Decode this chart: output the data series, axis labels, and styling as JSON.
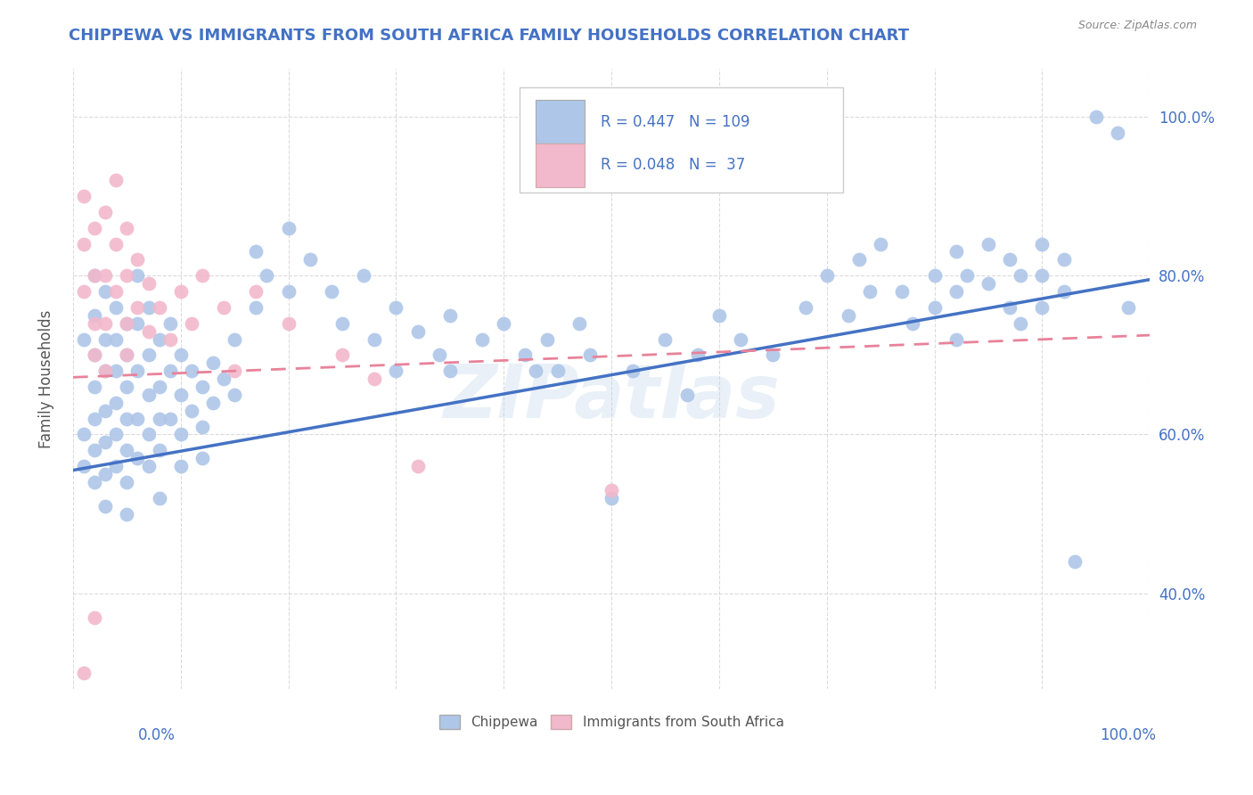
{
  "title": "CHIPPEWA VS IMMIGRANTS FROM SOUTH AFRICA FAMILY HOUSEHOLDS CORRELATION CHART",
  "source": "Source: ZipAtlas.com",
  "ylabel": "Family Households",
  "blue_color": "#aec6e8",
  "pink_color": "#f2b8cb",
  "blue_line_color": "#4472c4",
  "pink_line_color": "#e8829a",
  "title_color": "#4472c4",
  "source_color": "#888888",
  "watermark": "ZIPatlas",
  "xlim": [
    0.0,
    1.0
  ],
  "ylim": [
    0.28,
    1.06
  ],
  "yticks": [
    0.4,
    0.6,
    0.8,
    1.0
  ],
  "ytick_labels": [
    "40.0%",
    "60.0%",
    "80.0%",
    "100.0%"
  ],
  "blue_line": [
    0.0,
    0.555,
    1.0,
    0.795
  ],
  "pink_line": [
    0.0,
    0.672,
    1.0,
    0.725
  ],
  "blue_scatter": [
    [
      0.01,
      0.72
    ],
    [
      0.01,
      0.6
    ],
    [
      0.01,
      0.56
    ],
    [
      0.02,
      0.8
    ],
    [
      0.02,
      0.75
    ],
    [
      0.02,
      0.7
    ],
    [
      0.02,
      0.66
    ],
    [
      0.02,
      0.62
    ],
    [
      0.02,
      0.58
    ],
    [
      0.02,
      0.54
    ],
    [
      0.03,
      0.78
    ],
    [
      0.03,
      0.72
    ],
    [
      0.03,
      0.68
    ],
    [
      0.03,
      0.63
    ],
    [
      0.03,
      0.59
    ],
    [
      0.03,
      0.55
    ],
    [
      0.03,
      0.51
    ],
    [
      0.04,
      0.76
    ],
    [
      0.04,
      0.72
    ],
    [
      0.04,
      0.68
    ],
    [
      0.04,
      0.64
    ],
    [
      0.04,
      0.6
    ],
    [
      0.04,
      0.56
    ],
    [
      0.05,
      0.74
    ],
    [
      0.05,
      0.7
    ],
    [
      0.05,
      0.66
    ],
    [
      0.05,
      0.62
    ],
    [
      0.05,
      0.58
    ],
    [
      0.05,
      0.54
    ],
    [
      0.05,
      0.5
    ],
    [
      0.06,
      0.8
    ],
    [
      0.06,
      0.74
    ],
    [
      0.06,
      0.68
    ],
    [
      0.06,
      0.62
    ],
    [
      0.06,
      0.57
    ],
    [
      0.07,
      0.76
    ],
    [
      0.07,
      0.7
    ],
    [
      0.07,
      0.65
    ],
    [
      0.07,
      0.6
    ],
    [
      0.07,
      0.56
    ],
    [
      0.08,
      0.72
    ],
    [
      0.08,
      0.66
    ],
    [
      0.08,
      0.62
    ],
    [
      0.08,
      0.58
    ],
    [
      0.08,
      0.52
    ],
    [
      0.09,
      0.74
    ],
    [
      0.09,
      0.68
    ],
    [
      0.09,
      0.62
    ],
    [
      0.1,
      0.7
    ],
    [
      0.1,
      0.65
    ],
    [
      0.1,
      0.6
    ],
    [
      0.1,
      0.56
    ],
    [
      0.11,
      0.68
    ],
    [
      0.11,
      0.63
    ],
    [
      0.12,
      0.66
    ],
    [
      0.12,
      0.61
    ],
    [
      0.12,
      0.57
    ],
    [
      0.13,
      0.69
    ],
    [
      0.13,
      0.64
    ],
    [
      0.14,
      0.67
    ],
    [
      0.15,
      0.72
    ],
    [
      0.15,
      0.65
    ],
    [
      0.17,
      0.83
    ],
    [
      0.17,
      0.76
    ],
    [
      0.18,
      0.8
    ],
    [
      0.2,
      0.86
    ],
    [
      0.2,
      0.78
    ],
    [
      0.22,
      0.82
    ],
    [
      0.24,
      0.78
    ],
    [
      0.25,
      0.74
    ],
    [
      0.27,
      0.8
    ],
    [
      0.28,
      0.72
    ],
    [
      0.3,
      0.76
    ],
    [
      0.3,
      0.68
    ],
    [
      0.32,
      0.73
    ],
    [
      0.34,
      0.7
    ],
    [
      0.35,
      0.75
    ],
    [
      0.35,
      0.68
    ],
    [
      0.38,
      0.72
    ],
    [
      0.4,
      0.74
    ],
    [
      0.42,
      0.7
    ],
    [
      0.43,
      0.68
    ],
    [
      0.44,
      0.72
    ],
    [
      0.45,
      0.68
    ],
    [
      0.47,
      0.74
    ],
    [
      0.48,
      0.7
    ],
    [
      0.5,
      0.52
    ],
    [
      0.52,
      0.68
    ],
    [
      0.55,
      0.72
    ],
    [
      0.57,
      0.65
    ],
    [
      0.58,
      0.7
    ],
    [
      0.6,
      0.75
    ],
    [
      0.62,
      0.72
    ],
    [
      0.65,
      0.7
    ],
    [
      0.68,
      0.76
    ],
    [
      0.7,
      0.8
    ],
    [
      0.72,
      0.75
    ],
    [
      0.73,
      0.82
    ],
    [
      0.74,
      0.78
    ],
    [
      0.75,
      0.84
    ],
    [
      0.77,
      0.78
    ],
    [
      0.78,
      0.74
    ],
    [
      0.8,
      0.8
    ],
    [
      0.8,
      0.76
    ],
    [
      0.82,
      0.83
    ],
    [
      0.82,
      0.78
    ],
    [
      0.82,
      0.72
    ],
    [
      0.83,
      0.8
    ],
    [
      0.85,
      0.84
    ],
    [
      0.85,
      0.79
    ],
    [
      0.87,
      0.82
    ],
    [
      0.87,
      0.76
    ],
    [
      0.88,
      0.8
    ],
    [
      0.88,
      0.74
    ],
    [
      0.9,
      0.84
    ],
    [
      0.9,
      0.8
    ],
    [
      0.9,
      0.76
    ],
    [
      0.92,
      0.82
    ],
    [
      0.92,
      0.78
    ],
    [
      0.93,
      0.44
    ],
    [
      0.95,
      1.0
    ],
    [
      0.97,
      0.98
    ],
    [
      0.98,
      0.76
    ]
  ],
  "pink_scatter": [
    [
      0.01,
      0.9
    ],
    [
      0.01,
      0.84
    ],
    [
      0.01,
      0.78
    ],
    [
      0.02,
      0.86
    ],
    [
      0.02,
      0.8
    ],
    [
      0.02,
      0.74
    ],
    [
      0.02,
      0.7
    ],
    [
      0.03,
      0.88
    ],
    [
      0.03,
      0.8
    ],
    [
      0.03,
      0.74
    ],
    [
      0.03,
      0.68
    ],
    [
      0.04,
      0.92
    ],
    [
      0.04,
      0.84
    ],
    [
      0.04,
      0.78
    ],
    [
      0.05,
      0.86
    ],
    [
      0.05,
      0.8
    ],
    [
      0.05,
      0.74
    ],
    [
      0.05,
      0.7
    ],
    [
      0.06,
      0.82
    ],
    [
      0.06,
      0.76
    ],
    [
      0.07,
      0.79
    ],
    [
      0.07,
      0.73
    ],
    [
      0.08,
      0.76
    ],
    [
      0.09,
      0.72
    ],
    [
      0.1,
      0.78
    ],
    [
      0.11,
      0.74
    ],
    [
      0.12,
      0.8
    ],
    [
      0.14,
      0.76
    ],
    [
      0.15,
      0.68
    ],
    [
      0.17,
      0.78
    ],
    [
      0.2,
      0.74
    ],
    [
      0.25,
      0.7
    ],
    [
      0.28,
      0.67
    ],
    [
      0.32,
      0.56
    ],
    [
      0.5,
      0.53
    ],
    [
      0.01,
      0.3
    ],
    [
      0.02,
      0.37
    ]
  ]
}
